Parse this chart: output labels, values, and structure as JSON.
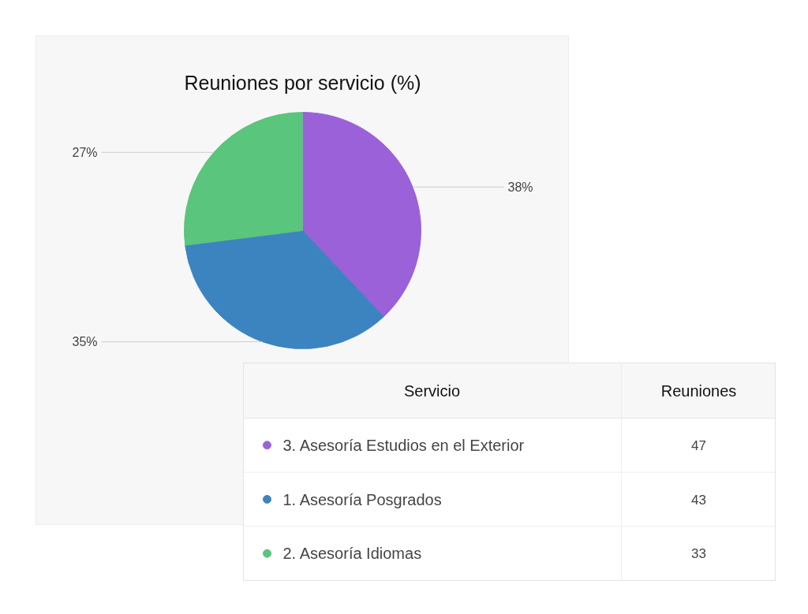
{
  "chart_data": {
    "type": "pie",
    "title": "Reuniones por servicio (%)",
    "categories": [
      "3. Asesoría Estudios en el Exterior",
      "1. Asesoría Posgrados",
      "2. Asesoría Idiomas"
    ],
    "values": [
      38,
      35,
      27
    ],
    "value_labels": [
      "38%",
      "35%",
      "27%"
    ],
    "colors": [
      "#9b61d9",
      "#3b84bf",
      "#5ac57c"
    ],
    "legend": "bottom right",
    "legend_title": "Servicio",
    "annotations": [
      "Reuniones",
      "47",
      "43",
      "33"
    ]
  }
}
